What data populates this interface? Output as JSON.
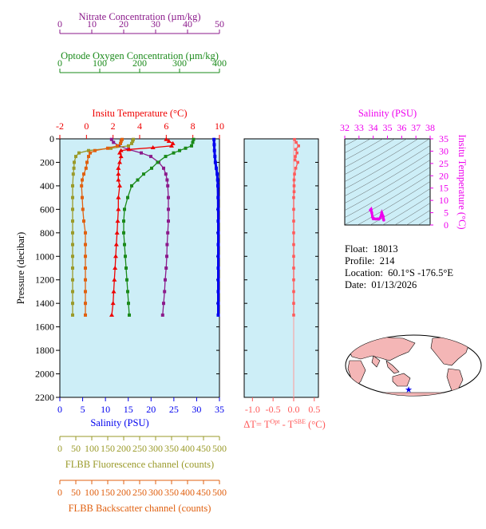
{
  "colors": {
    "nitrate": "#8b1a8b",
    "oxygen": "#1a8a1a",
    "temperature": "#ee0000",
    "salinity": "#0000ee",
    "fluorescence": "#9a9a2a",
    "backscatter": "#e06010",
    "delta_t": "#ff5a5a",
    "ts_axis": "#ee00ee",
    "plot_bg": "#cdeef7",
    "land": "#f4b6b6"
  },
  "info": {
    "float_label": "Float:",
    "float_value": "18013",
    "profile_label": "Profile:",
    "profile_value": "214",
    "location_label": "Location:",
    "location_value": "60.1°S  -176.5°E",
    "date_label": "Date:",
    "date_value": "01/13/2026"
  },
  "map": {
    "marker_icon": "star-icon"
  },
  "chart_data": [
    {
      "id": "main_profile",
      "type": "line",
      "ylabel": "Pressure (decibar)",
      "ylim": [
        2200,
        0
      ],
      "yticks": [
        0,
        200,
        400,
        600,
        800,
        1000,
        1200,
        1400,
        1600,
        1800,
        2000,
        2200
      ],
      "grid": false,
      "axes": [
        {
          "key": "nitrate",
          "title": "Nitrate Concentration (µm/kg)",
          "xlim": [
            0,
            50
          ],
          "ticks": [
            0,
            10,
            20,
            30,
            40,
            50
          ],
          "position": "top"
        },
        {
          "key": "oxygen",
          "title": "Optode Oxygen Concentration (µm/kg)",
          "xlim": [
            0,
            400
          ],
          "ticks": [
            0,
            100,
            200,
            300,
            400
          ],
          "position": "top"
        },
        {
          "key": "temperature",
          "title": "Insitu Temperature (°C)",
          "xlim": [
            -2,
            10
          ],
          "ticks": [
            -2,
            0,
            2,
            4,
            6,
            8,
            10
          ],
          "position": "top"
        },
        {
          "key": "salinity",
          "title": "Salinity (PSU)",
          "xlim": [
            0,
            35
          ],
          "ticks": [
            0,
            5,
            10,
            15,
            20,
            25,
            30,
            35
          ],
          "position": "bottom"
        },
        {
          "key": "fluorescence",
          "title": "FLBB Fluorescence channel (counts)",
          "xlim": [
            0,
            500
          ],
          "ticks": [
            0,
            50,
            100,
            150,
            200,
            250,
            300,
            350,
            400,
            450,
            500
          ],
          "position": "bottom"
        },
        {
          "key": "backscatter",
          "title": "FLBB Backscatter channel (counts)",
          "xlim": [
            0,
            500
          ],
          "ticks": [
            0,
            50,
            100,
            150,
            200,
            250,
            300,
            350,
            400,
            450,
            500
          ],
          "position": "bottom"
        }
      ],
      "series": [
        {
          "key": "nitrate",
          "pressure": [
            5,
            30,
            60,
            90,
            120,
            150,
            200,
            250,
            300,
            350,
            400,
            500,
            600,
            700,
            800,
            900,
            1000,
            1100,
            1200,
            1300,
            1400,
            1500
          ],
          "values": [
            16.2,
            16.8,
            18.5,
            21.5,
            25.5,
            28.5,
            31.0,
            32.5,
            33.2,
            33.6,
            33.8,
            34.0,
            34.0,
            34.0,
            33.8,
            33.6,
            33.5,
            33.3,
            33.0,
            32.8,
            32.5,
            32.2
          ]
        },
        {
          "key": "oxygen",
          "pressure": [
            5,
            30,
            60,
            80,
            100,
            120,
            150,
            200,
            250,
            300,
            350,
            400,
            500,
            600,
            700,
            800,
            900,
            1000,
            1100,
            1200,
            1300,
            1400,
            1500
          ],
          "values": [
            335,
            333,
            330,
            315,
            300,
            285,
            265,
            245,
            230,
            210,
            195,
            180,
            170,
            162,
            160,
            160,
            162,
            164,
            166,
            168,
            170,
            172,
            174
          ]
        },
        {
          "key": "temperature",
          "pressure": [
            5,
            20,
            40,
            60,
            75,
            90,
            100,
            120,
            150,
            200,
            250,
            300,
            350,
            400,
            500,
            600,
            700,
            800,
            900,
            1000,
            1100,
            1200,
            1300,
            1400,
            1500
          ],
          "values": [
            6.0,
            6.2,
            6.5,
            6.4,
            5.0,
            3.2,
            2.6,
            2.5,
            2.6,
            2.5,
            2.4,
            2.4,
            2.4,
            2.5,
            2.4,
            2.4,
            2.35,
            2.3,
            2.25,
            2.2,
            2.15,
            2.1,
            2.05,
            2.0,
            1.9
          ]
        },
        {
          "key": "salinity",
          "pressure": [
            5,
            50,
            100,
            150,
            200,
            250,
            300,
            350,
            400,
            500,
            600,
            700,
            800,
            900,
            1000,
            1100,
            1200,
            1300,
            1400,
            1500
          ],
          "values": [
            33.8,
            33.85,
            33.9,
            34.0,
            34.1,
            34.3,
            34.5,
            34.6,
            34.65,
            34.7,
            34.72,
            34.73,
            34.74,
            34.74,
            34.74,
            34.74,
            34.74,
            34.74,
            34.74,
            34.74
          ]
        },
        {
          "key": "fluorescence",
          "pressure": [
            5,
            20,
            40,
            60,
            80,
            100,
            120,
            150,
            200,
            250,
            300,
            400,
            500,
            600,
            700,
            800,
            900,
            1000,
            1100,
            1200,
            1300,
            1400,
            1500
          ],
          "values": [
            230,
            228,
            225,
            215,
            160,
            90,
            60,
            50,
            45,
            44,
            42,
            40,
            40,
            40,
            40,
            40,
            40,
            40,
            40,
            40,
            40,
            40,
            40
          ]
        },
        {
          "key": "backscatter",
          "pressure": [
            5,
            20,
            40,
            60,
            80,
            100,
            120,
            150,
            200,
            250,
            300,
            350,
            400,
            500,
            600,
            700,
            800,
            900,
            1000,
            1100,
            1200,
            1300,
            1400,
            1500
          ],
          "values": [
            195,
            192,
            190,
            180,
            150,
            110,
            95,
            90,
            85,
            82,
            75,
            70,
            68,
            70,
            72,
            75,
            80,
            80,
            80,
            80,
            80,
            80,
            80,
            80
          ]
        }
      ]
    },
    {
      "id": "delta_t",
      "type": "line",
      "xlabel_parts": [
        "ΔT= T",
        "Opt",
        " - T",
        "SBE",
        " (°C)"
      ],
      "xlim": [
        -1.2,
        0.6
      ],
      "xticks": [
        -1.0,
        -0.5,
        0.0,
        0.5
      ],
      "ylim": [
        2200,
        0
      ],
      "series": [
        {
          "name": "",
          "pressure": [
            5,
            30,
            60,
            90,
            120,
            150,
            180,
            200,
            250,
            300,
            350,
            400,
            450,
            500,
            600,
            700,
            800,
            900,
            1000,
            1100,
            1200,
            1300,
            1400,
            1500
          ],
          "values": [
            0.02,
            0.06,
            0.12,
            0.05,
            0.08,
            0.04,
            0.03,
            0.1,
            0.05,
            0.02,
            0.01,
            0.01,
            0.01,
            0.0,
            0.0,
            0.0,
            0.0,
            0.0,
            0.0,
            0.0,
            0.0,
            0.0,
            0.0,
            0.0
          ]
        }
      ]
    },
    {
      "id": "ts_diagram",
      "type": "scatter",
      "xlabel": "Salinity (PSU)",
      "ylabel": "Insitu Temperature (°C)",
      "xlim": [
        32,
        38
      ],
      "xticks": [
        32,
        33,
        34,
        35,
        36,
        37,
        38
      ],
      "ylim": [
        0,
        35
      ],
      "yticks": [
        0,
        5,
        10,
        15,
        20,
        25,
        30,
        35
      ],
      "series": [
        {
          "name": "",
          "x": [
            33.8,
            33.85,
            33.9,
            33.95,
            34.0,
            34.05,
            34.1,
            34.2,
            34.3,
            34.4,
            34.5,
            34.6,
            34.7,
            34.72,
            34.74
          ],
          "y": [
            6.0,
            6.4,
            5.0,
            3.2,
            2.5,
            2.6,
            2.5,
            2.4,
            2.5,
            2.4,
            3.0,
            5.0,
            3.5,
            2.4,
            2.0
          ]
        }
      ]
    }
  ]
}
